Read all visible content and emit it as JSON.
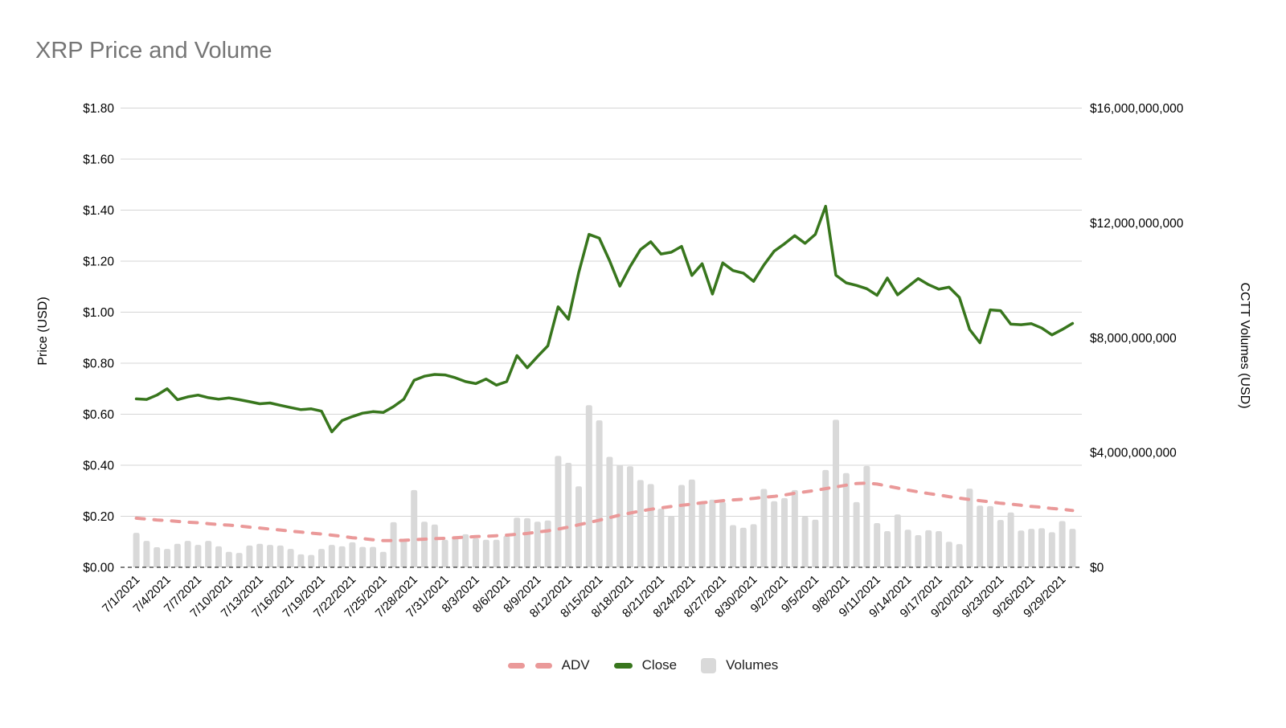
{
  "title": "XRP Price and Volume",
  "colors": {
    "background": "#ffffff",
    "title": "#757575",
    "tick": "#000000",
    "grid": "#d5d5d5",
    "baseline": "#000000",
    "adv": "#ea9999",
    "close": "#38761d",
    "volume": "#d9d9d9"
  },
  "left_axis": {
    "title": "Price (USD)",
    "ticks": [
      "$0.00",
      "$0.20",
      "$0.40",
      "$0.60",
      "$0.80",
      "$1.00",
      "$1.20",
      "$1.40",
      "$1.60",
      "$1.80"
    ]
  },
  "right_axis": {
    "title": "CCTT Volumes (USD)",
    "ticks": [
      "$0",
      "$4,000,000,000",
      "$8,000,000,000",
      "$12,000,000,000",
      "$16,000,000,000"
    ],
    "tick_values_billions": [
      0,
      4,
      8,
      12,
      16
    ]
  },
  "legend": [
    {
      "label": "ADV",
      "swatch": "dashed-line",
      "color": "#ea9999"
    },
    {
      "label": "Close",
      "swatch": "line",
      "color": "#38761d"
    },
    {
      "label": "Volumes",
      "swatch": "square",
      "color": "#d9d9d9"
    }
  ],
  "chart_data": {
    "type": "combo-bar-line",
    "title": "XRP Price and Volume",
    "xlabel": "",
    "ylabel_left": "Price (USD)",
    "ylabel_right": "CCTT Volumes (USD)",
    "ylim_left": [
      0,
      1.8
    ],
    "ylim_right_billions": [
      0,
      16
    ],
    "grid": "horizontal-only",
    "legend_position": "bottom-center",
    "x_tick_step": 3,
    "x": [
      "7/1/2021",
      "7/2/2021",
      "7/3/2021",
      "7/4/2021",
      "7/5/2021",
      "7/6/2021",
      "7/7/2021",
      "7/8/2021",
      "7/9/2021",
      "7/10/2021",
      "7/11/2021",
      "7/12/2021",
      "7/13/2021",
      "7/14/2021",
      "7/15/2021",
      "7/16/2021",
      "7/17/2021",
      "7/18/2021",
      "7/19/2021",
      "7/20/2021",
      "7/21/2021",
      "7/22/2021",
      "7/23/2021",
      "7/24/2021",
      "7/25/2021",
      "7/26/2021",
      "7/27/2021",
      "7/28/2021",
      "7/29/2021",
      "7/30/2021",
      "7/31/2021",
      "8/1/2021",
      "8/2/2021",
      "8/3/2021",
      "8/4/2021",
      "8/5/2021",
      "8/6/2021",
      "8/7/2021",
      "8/8/2021",
      "8/9/2021",
      "8/10/2021",
      "8/11/2021",
      "8/12/2021",
      "8/13/2021",
      "8/14/2021",
      "8/15/2021",
      "8/16/2021",
      "8/17/2021",
      "8/18/2021",
      "8/19/2021",
      "8/20/2021",
      "8/21/2021",
      "8/22/2021",
      "8/23/2021",
      "8/24/2021",
      "8/25/2021",
      "8/26/2021",
      "8/27/2021",
      "8/28/2021",
      "8/29/2021",
      "8/30/2021",
      "8/31/2021",
      "9/1/2021",
      "9/2/2021",
      "9/3/2021",
      "9/4/2021",
      "9/5/2021",
      "9/6/2021",
      "9/7/2021",
      "9/8/2021",
      "9/9/2021",
      "9/10/2021",
      "9/11/2021",
      "9/12/2021",
      "9/13/2021",
      "9/14/2021",
      "9/15/2021",
      "9/16/2021",
      "9/17/2021",
      "9/18/2021",
      "9/19/2021",
      "9/20/2021",
      "9/21/2021",
      "9/22/2021",
      "9/23/2021",
      "9/24/2021",
      "9/25/2021",
      "9/26/2021",
      "9/27/2021",
      "9/28/2021",
      "9/29/2021",
      "9/30/2021"
    ],
    "series": [
      {
        "name": "ADV",
        "type": "line",
        "style": "dashed",
        "axis": "right",
        "unit": "USD billions",
        "values": [
          1.71,
          1.68,
          1.65,
          1.63,
          1.6,
          1.57,
          1.55,
          1.52,
          1.49,
          1.47,
          1.44,
          1.4,
          1.37,
          1.33,
          1.3,
          1.26,
          1.23,
          1.19,
          1.16,
          1.12,
          1.08,
          1.03,
          1.0,
          0.96,
          0.93,
          0.93,
          0.94,
          0.96,
          0.98,
          1.0,
          1.01,
          1.03,
          1.05,
          1.07,
          1.08,
          1.1,
          1.12,
          1.15,
          1.18,
          1.23,
          1.27,
          1.33,
          1.4,
          1.48,
          1.56,
          1.64,
          1.73,
          1.82,
          1.89,
          1.96,
          2.02,
          2.07,
          2.12,
          2.16,
          2.2,
          2.25,
          2.28,
          2.32,
          2.35,
          2.37,
          2.4,
          2.44,
          2.47,
          2.52,
          2.58,
          2.63,
          2.68,
          2.74,
          2.8,
          2.86,
          2.92,
          2.93,
          2.9,
          2.83,
          2.76,
          2.69,
          2.63,
          2.57,
          2.52,
          2.46,
          2.41,
          2.36,
          2.32,
          2.28,
          2.23,
          2.2,
          2.16,
          2.12,
          2.09,
          2.05,
          2.02,
          1.98
        ]
      },
      {
        "name": "Close",
        "type": "line",
        "style": "solid",
        "axis": "left",
        "unit": "USD",
        "values": [
          0.66,
          0.658,
          0.675,
          0.7,
          0.657,
          0.668,
          0.675,
          0.665,
          0.659,
          0.664,
          0.657,
          0.649,
          0.641,
          0.644,
          0.635,
          0.626,
          0.618,
          0.621,
          0.612,
          0.531,
          0.575,
          0.591,
          0.604,
          0.61,
          0.607,
          0.63,
          0.659,
          0.733,
          0.749,
          0.756,
          0.754,
          0.743,
          0.728,
          0.72,
          0.738,
          0.714,
          0.728,
          0.83,
          0.782,
          0.826,
          0.868,
          1.021,
          0.972,
          1.155,
          1.305,
          1.29,
          1.202,
          1.102,
          1.179,
          1.245,
          1.276,
          1.228,
          1.235,
          1.258,
          1.144,
          1.19,
          1.071,
          1.193,
          1.163,
          1.153,
          1.121,
          1.185,
          1.239,
          1.268,
          1.3,
          1.27,
          1.305,
          1.415,
          1.145,
          1.115,
          1.105,
          1.092,
          1.066,
          1.134,
          1.068,
          1.1,
          1.132,
          1.108,
          1.09,
          1.098,
          1.058,
          0.932,
          0.88,
          1.009,
          1.006,
          0.953,
          0.951,
          0.955,
          0.938,
          0.911,
          0.932,
          0.956
        ]
      },
      {
        "name": "Volumes",
        "type": "bar",
        "axis": "right",
        "unit": "USD billions",
        "values": [
          1.2,
          0.92,
          0.7,
          0.64,
          0.82,
          0.92,
          0.78,
          0.92,
          0.73,
          0.54,
          0.5,
          0.76,
          0.82,
          0.78,
          0.76,
          0.64,
          0.45,
          0.43,
          0.64,
          0.78,
          0.73,
          0.87,
          0.71,
          0.71,
          0.54,
          1.57,
          0.98,
          2.69,
          1.59,
          1.49,
          0.96,
          1.08,
          1.15,
          1.01,
          0.96,
          0.96,
          1.1,
          1.73,
          1.71,
          1.59,
          1.63,
          3.88,
          3.64,
          2.82,
          5.65,
          5.12,
          3.85,
          3.57,
          3.52,
          3.04,
          2.9,
          2.04,
          1.79,
          2.87,
          3.06,
          2.27,
          2.36,
          2.27,
          1.47,
          1.38,
          1.5,
          2.73,
          2.3,
          2.41,
          2.69,
          1.77,
          1.66,
          3.39,
          5.14,
          3.28,
          2.27,
          3.53,
          1.54,
          1.26,
          1.84,
          1.31,
          1.12,
          1.29,
          1.26,
          0.89,
          0.81,
          2.74,
          2.15,
          2.13,
          1.65,
          1.91,
          1.28,
          1.34,
          1.36,
          1.22,
          1.61,
          1.34
        ]
      }
    ]
  }
}
